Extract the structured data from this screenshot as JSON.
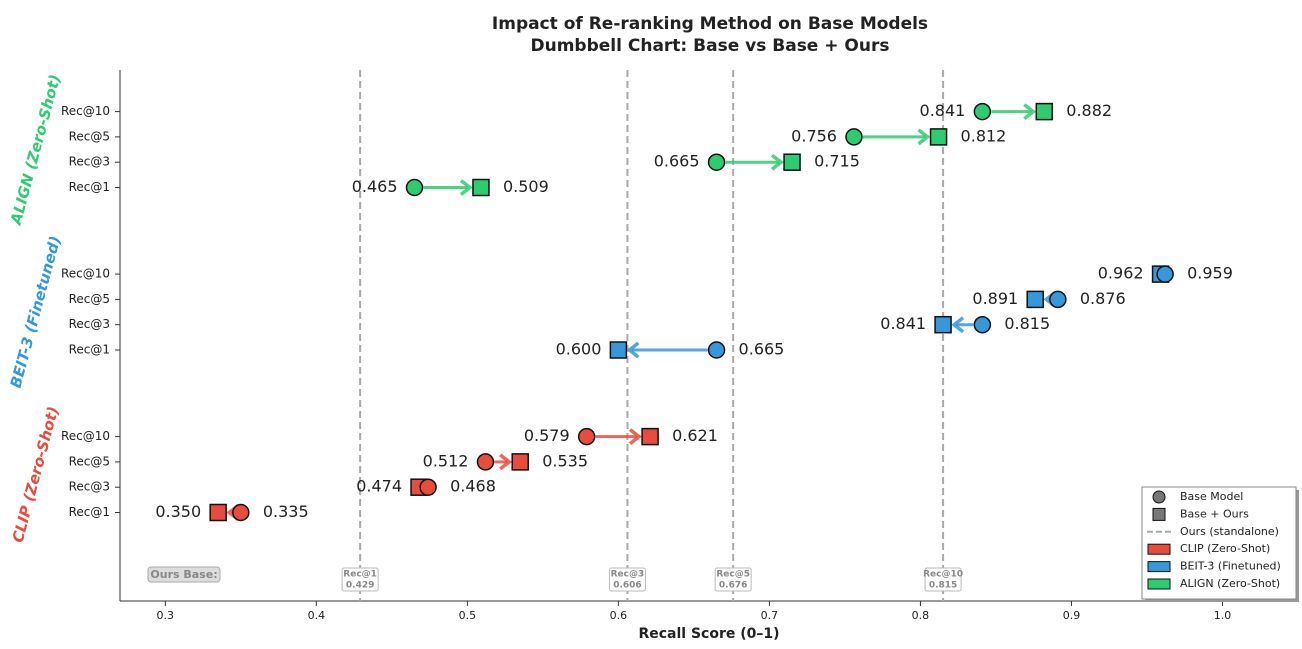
{
  "chart_data": {
    "type": "dumbbell",
    "title": "Impact of Re-ranking Method on Base Models",
    "subtitle": "Dumbbell Chart: Base vs Base + Ours",
    "x_label": "Recall Score (0–1)",
    "xlim": [
      0.27,
      1.05
    ],
    "xticks": [
      0.3,
      0.4,
      0.5,
      0.6,
      0.7,
      0.8,
      0.9,
      {
        "value": 1,
        "label": "1.0"
      }
    ],
    "categories": [
      "Rec@1",
      "Rec@3",
      "Rec@5",
      "Rec@10"
    ],
    "markers": {
      "base": "Base Model",
      "ours": "Base + Ours"
    },
    "groups": [
      {
        "name": "CLIP (Zero-Shot)",
        "color": "#e74c3c",
        "base": {
          "values": [
            0.35,
            0.474,
            0.512,
            0.579
          ],
          "value_labels": [
            "0.350",
            "0.474",
            "0.512",
            "0.579"
          ]
        },
        "ours": {
          "values": [
            0.335,
            0.468,
            0.535,
            0.621
          ],
          "value_labels": [
            "0.335",
            "0.468",
            "0.535",
            "0.621"
          ]
        }
      },
      {
        "name": "BEIT-3 (Finetuned)",
        "color": "#3498db",
        "base": {
          "values": [
            0.665,
            0.841,
            0.891,
            0.962
          ],
          "value_labels": [
            "0.665",
            "0.841",
            "0.891",
            "0.962"
          ]
        },
        "ours": {
          "values": [
            0.6,
            0.815,
            0.876,
            0.959
          ],
          "value_labels": [
            "0.600",
            "0.815",
            "0.876",
            "0.959"
          ]
        }
      },
      {
        "name": "ALIGN (Zero-Shot)",
        "color": "#2ecc71",
        "base": {
          "values": [
            0.465,
            0.665,
            0.756,
            0.841
          ],
          "value_labels": [
            "0.465",
            "0.665",
            "0.756",
            "0.841"
          ]
        },
        "ours": {
          "values": [
            0.509,
            0.715,
            0.812,
            0.882
          ],
          "value_labels": [
            "0.509",
            "0.715",
            "0.812",
            "0.882"
          ]
        }
      }
    ],
    "reference": {
      "name": "Ours (standalone)",
      "label": "Ours Base:",
      "values": [
        0.429,
        0.606,
        0.676,
        0.815
      ]
    },
    "legend": "lower right"
  }
}
